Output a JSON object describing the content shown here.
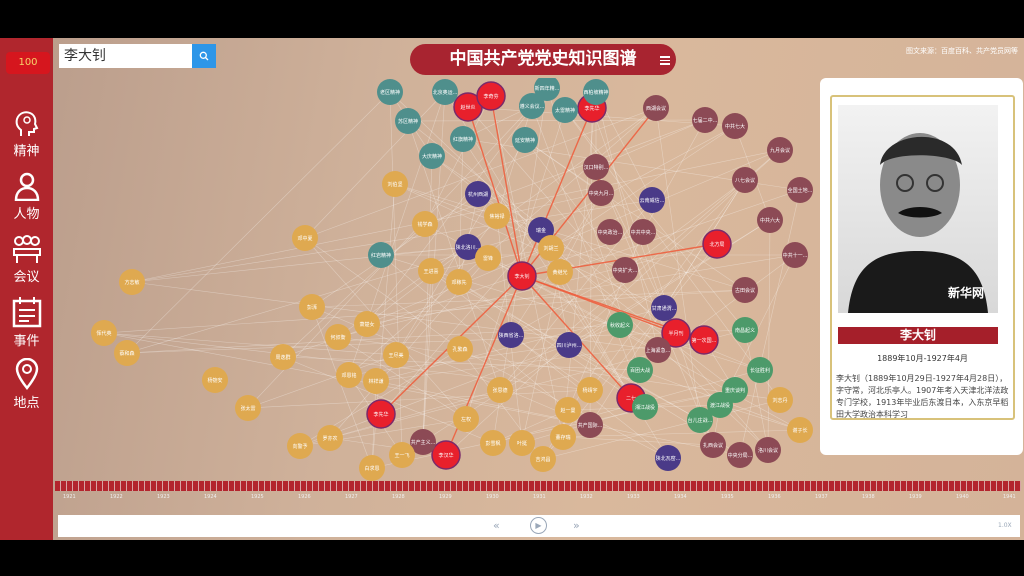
{
  "app": {
    "title": "中国共产党党史知识图谱",
    "source": "图文来源：百度百科、共产党员网等",
    "logo": "100"
  },
  "search": {
    "value": "李大钊"
  },
  "sidebar": {
    "items": [
      {
        "label": "精神",
        "icon": "head-icon"
      },
      {
        "label": "人物",
        "icon": "person-icon"
      },
      {
        "label": "会议",
        "icon": "meeting-icon"
      },
      {
        "label": "事件",
        "icon": "calendar-icon"
      },
      {
        "label": "地点",
        "icon": "location-pin-icon"
      }
    ]
  },
  "colors": {
    "spirit": "#4f8f8c",
    "person": "#dfa950",
    "meeting": "#8c4a55",
    "place": "#4a3a88",
    "event": "#4d9a6a",
    "highlight": "#e8202c",
    "sidebar": "#b0262d"
  },
  "graph": {
    "nodes": [
      {
        "label": "李大钊",
        "type": "highlight"
      },
      {
        "label": "赵世炎",
        "type": "highlight"
      },
      {
        "label": "李奇芬",
        "type": "highlight"
      },
      {
        "label": "李先华",
        "type": "highlight"
      },
      {
        "label": "北方局",
        "type": "highlight"
      },
      {
        "label": "半月刊",
        "type": "highlight"
      },
      {
        "label": "第一次国...",
        "type": "highlight"
      },
      {
        "label": "李先华",
        "type": "highlight"
      },
      {
        "label": "李汉华",
        "type": "highlight"
      },
      {
        "label": "二七",
        "type": "highlight"
      },
      {
        "label": "北京奥运...",
        "type": "spirit"
      },
      {
        "label": "新四年精...",
        "type": "spirit"
      },
      {
        "label": "遵义会议...",
        "type": "spirit"
      },
      {
        "label": "太雷精神",
        "type": "spirit"
      },
      {
        "label": "苏区精神",
        "type": "spirit"
      },
      {
        "label": "红旗精神",
        "type": "spirit"
      },
      {
        "label": "大庆精神",
        "type": "spirit"
      },
      {
        "label": "西柏坡精神",
        "type": "spirit"
      },
      {
        "label": "延安精神",
        "type": "spirit"
      },
      {
        "label": "老区精神",
        "type": "spirit"
      },
      {
        "label": "红岩精神",
        "type": "spirit"
      },
      {
        "label": "杭州西湖",
        "type": "place"
      },
      {
        "label": "瑞金",
        "type": "place"
      },
      {
        "label": "陕北洛川...",
        "type": "place"
      },
      {
        "label": "陕西省洛...",
        "type": "place"
      },
      {
        "label": "四川泸州...",
        "type": "place"
      },
      {
        "label": "云南威信...",
        "type": "place"
      },
      {
        "label": "甘肃通渭...",
        "type": "place"
      },
      {
        "label": "陕北瓦窑...",
        "type": "place"
      },
      {
        "label": "汉口特别...",
        "type": "meeting"
      },
      {
        "label": "中央九月...",
        "type": "meeting"
      },
      {
        "label": "中央政治...",
        "type": "meeting"
      },
      {
        "label": "中共中央...",
        "type": "meeting"
      },
      {
        "label": "中央扩大...",
        "type": "meeting"
      },
      {
        "label": "西湖会议",
        "type": "meeting"
      },
      {
        "label": "上海紧急...",
        "type": "meeting"
      },
      {
        "label": "共产国际...",
        "type": "meeting"
      },
      {
        "label": "共产主义...",
        "type": "meeting"
      },
      {
        "label": "扎西会议",
        "type": "meeting"
      },
      {
        "label": "中央分局...",
        "type": "meeting"
      },
      {
        "label": "洛川会议",
        "type": "meeting"
      },
      {
        "label": "九月会议",
        "type": "meeting"
      },
      {
        "label": "全国土地...",
        "type": "meeting"
      },
      {
        "label": "中共七大",
        "type": "meeting"
      },
      {
        "label": "七届二中...",
        "type": "meeting"
      },
      {
        "label": "八七会议",
        "type": "meeting"
      },
      {
        "label": "中共六大",
        "type": "meeting"
      },
      {
        "label": "中共十一...",
        "type": "meeting"
      },
      {
        "label": "古田会议",
        "type": "meeting"
      },
      {
        "label": "秋收起义",
        "type": "event"
      },
      {
        "label": "百团大战",
        "type": "event"
      },
      {
        "label": "湘江战役",
        "type": "event"
      },
      {
        "label": "台儿庄战...",
        "type": "event"
      },
      {
        "label": "渡江战役",
        "type": "event"
      },
      {
        "label": "重庆谈判",
        "type": "event"
      },
      {
        "label": "南昌起义",
        "type": "event"
      },
      {
        "label": "长征胜利",
        "type": "event"
      },
      {
        "label": "刘伯坚",
        "type": "person"
      },
      {
        "label": "邓中夏",
        "type": "person"
      },
      {
        "label": "方志敏",
        "type": "person"
      },
      {
        "label": "恽代英",
        "type": "person"
      },
      {
        "label": "蔡和森",
        "type": "person"
      },
      {
        "label": "杨匏安",
        "type": "person"
      },
      {
        "label": "张太雷",
        "type": "person"
      },
      {
        "label": "向警予",
        "type": "person"
      },
      {
        "label": "罗亦农",
        "type": "person"
      },
      {
        "label": "彭湃",
        "type": "person"
      },
      {
        "label": "何叔衡",
        "type": "person"
      },
      {
        "label": "萧楚女",
        "type": "person"
      },
      {
        "label": "王尽美",
        "type": "person"
      },
      {
        "label": "邓恩铭",
        "type": "person"
      },
      {
        "label": "周逸群",
        "type": "person"
      },
      {
        "label": "林祥谦",
        "type": "person"
      },
      {
        "label": "王一飞",
        "type": "person"
      },
      {
        "label": "赵一曼",
        "type": "person"
      },
      {
        "label": "杨靖宇",
        "type": "person"
      },
      {
        "label": "左权",
        "type": "person"
      },
      {
        "label": "彭雪枫",
        "type": "person"
      },
      {
        "label": "叶挺",
        "type": "person"
      },
      {
        "label": "吉鸿昌",
        "type": "person"
      },
      {
        "label": "董存瑞",
        "type": "person"
      },
      {
        "label": "黄继光",
        "type": "person"
      },
      {
        "label": "刘胡兰",
        "type": "person"
      },
      {
        "label": "雷锋",
        "type": "person"
      },
      {
        "label": "焦裕禄",
        "type": "person"
      },
      {
        "label": "王进喜",
        "type": "person"
      },
      {
        "label": "钱学森",
        "type": "person"
      },
      {
        "label": "邓稼先",
        "type": "person"
      },
      {
        "label": "孔繁森",
        "type": "person"
      },
      {
        "label": "张思德",
        "type": "person"
      },
      {
        "label": "白求恩",
        "type": "person"
      },
      {
        "label": "刘志丹",
        "type": "person"
      },
      {
        "label": "谢子长",
        "type": "person"
      }
    ],
    "highlight_edges": [
      [
        0,
        1
      ],
      [
        0,
        2
      ],
      [
        0,
        3
      ],
      [
        0,
        4
      ],
      [
        0,
        5
      ],
      [
        0,
        6
      ],
      [
        0,
        7
      ],
      [
        0,
        8
      ],
      [
        0,
        9
      ],
      [
        0,
        34
      ]
    ]
  },
  "detail": {
    "name": "李大钊",
    "dates": "1889年10月-1927年4月",
    "bio": "李大钊（1889年10月29日-1927年4月28日），字守常，河北乐亭人。1907年考入天津北洋法政专门学校，1913年毕业后东渡日本，入东京早稻田大学政治本科学习",
    "watermark": "新华网"
  },
  "timeline": {
    "labels": [
      "1921",
      "1922",
      "1923",
      "1924",
      "1925",
      "1926",
      "1927",
      "1928",
      "1929",
      "1930",
      "1931",
      "1932",
      "1933",
      "1934",
      "1935",
      "1936",
      "1937",
      "1938",
      "1939",
      "1940",
      "1941"
    ]
  },
  "player": {
    "prev": "«",
    "play": "▶",
    "next": "»",
    "zoom": "1.0X"
  }
}
